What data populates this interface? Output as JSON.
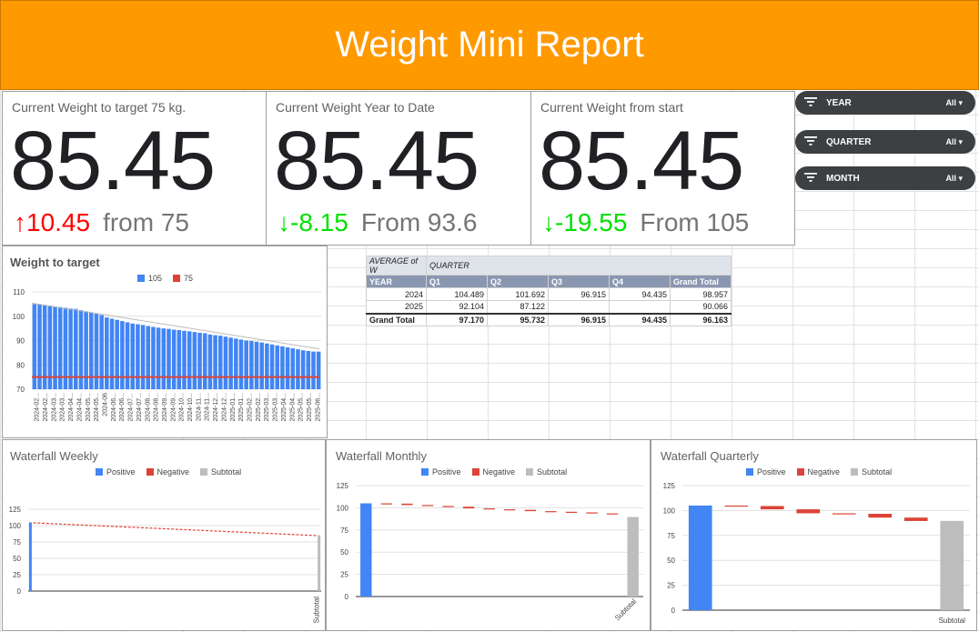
{
  "header": {
    "title": "Weight Mini Report"
  },
  "scorecards": [
    {
      "title": "Current Weight to target 75 kg.",
      "value": "85.45",
      "delta": "10.45",
      "from": "from 75",
      "direction": "up"
    },
    {
      "title": "Current Weight Year to Date",
      "value": "85.45",
      "delta": "-8.15",
      "from": "From 93.6",
      "direction": "down"
    },
    {
      "title": "Current Weight from start",
      "value": "85.45",
      "delta": "-19.55",
      "from": "From 105",
      "direction": "down"
    }
  ],
  "filters": [
    {
      "name": "YEAR",
      "value": "All"
    },
    {
      "name": "QUARTER",
      "value": "All"
    },
    {
      "name": "MONTH",
      "value": "All"
    }
  ],
  "colors": {
    "header": "#ff9900",
    "bar": "#4285f4",
    "target": "#db4437",
    "subtotal": "#bdbdbd",
    "up": "#ff0000",
    "down": "#00e000"
  },
  "weight_chart": {
    "title": "Weight to target",
    "legend": [
      "105",
      "75"
    ],
    "y_ticks": [
      "110",
      "100",
      "90",
      "80",
      "70"
    ],
    "x_labels": [
      "2024-02...",
      "2024-02...",
      "2024-03...",
      "2024-03...",
      "2024-04...",
      "2024-04...",
      "2024-05...",
      "2024-05...",
      "2024-06",
      "2024-06...",
      "2024-06...",
      "2024-07...",
      "2024-07...",
      "2024-08...",
      "2024-08...",
      "2024-09...",
      "2024-09...",
      "2024-10...",
      "2024-10...",
      "2024-11...",
      "2024-11...",
      "2024-12...",
      "2024-12...",
      "2025-01...",
      "2025-01...",
      "2025-02...",
      "2025-02...",
      "2025-03...",
      "2025-03...",
      "2025-04...",
      "2025-04...",
      "2025-05...",
      "2025-05...",
      "2025-06..."
    ]
  },
  "pivot": {
    "corner": "AVERAGE of W",
    "column_group": "QUARTER",
    "row_header": "YEAR",
    "columns": [
      "Q1",
      "Q2",
      "Q3",
      "Q4",
      "Grand Total"
    ],
    "rows": [
      {
        "label": "2024",
        "cells": [
          "104.489",
          "101.692",
          "96.915",
          "94.435",
          "98.957"
        ]
      },
      {
        "label": "2025",
        "cells": [
          "92.104",
          "87.122",
          "",
          "",
          "90.066"
        ]
      }
    ],
    "grand_total": {
      "label": "Grand Total",
      "cells": [
        "97.170",
        "95.732",
        "96.915",
        "94.435",
        "96.163"
      ]
    }
  },
  "waterfalls": [
    {
      "title": "Waterfall Weekly",
      "legend": [
        "Positive",
        "Negative",
        "Subtotal"
      ],
      "y_ticks": [
        "125",
        "100",
        "75",
        "50",
        "25",
        "0"
      ],
      "x_label": "Subtotal"
    },
    {
      "title": "Waterfall Monthly",
      "legend": [
        "Positive",
        "Negative",
        "Subtotal"
      ],
      "y_ticks": [
        "125",
        "100",
        "75",
        "50",
        "25",
        "0"
      ],
      "x_label": "Subtotal"
    },
    {
      "title": "Waterfall Quarterly",
      "legend": [
        "Positive",
        "Negative",
        "Subtotal"
      ],
      "y_ticks": [
        "125",
        "100",
        "75",
        "50",
        "25",
        "0"
      ],
      "x_label": "Subtotal"
    }
  ],
  "chart_data": [
    {
      "type": "bar",
      "title": "Weight to target",
      "series": [
        {
          "name": "105",
          "values": [
            105,
            105,
            104.5,
            104.3,
            104,
            103.8,
            103.5,
            103.2,
            103,
            102.5,
            102,
            101.5,
            101,
            100.5,
            99.5,
            99,
            98.5,
            98,
            97.5,
            97,
            96.7,
            96.4,
            96,
            95.6,
            95.3,
            95,
            94.8,
            94.5,
            94.3,
            94,
            93.8,
            93.5,
            93.2,
            93,
            92.5,
            92.2,
            92,
            91.6,
            91.2,
            90.8,
            90.4,
            90,
            89.8,
            89.5,
            89.2,
            88.8,
            88.4,
            88,
            87.6,
            87.2,
            86.8,
            86.4,
            86,
            85.7,
            85.45,
            85.45
          ]
        },
        {
          "name": "75",
          "values": [
            75
          ]
        }
      ],
      "ylim": [
        70,
        110
      ]
    },
    {
      "type": "bar",
      "title": "Waterfall Weekly",
      "values": [
        105,
        85.45
      ],
      "ylim": [
        0,
        125
      ]
    },
    {
      "type": "bar",
      "title": "Waterfall Monthly",
      "start": 105,
      "deltas": [
        -0.3,
        -1.6,
        -1.1,
        -0.8,
        -1.9,
        -1.0,
        -0.6,
        -1.5,
        -0.7,
        -0.7,
        -1.1,
        -1.2
      ],
      "subtotal": 89.6,
      "ylim": [
        0,
        125
      ]
    },
    {
      "type": "bar",
      "title": "Waterfall Quarterly",
      "start": 105,
      "deltas": [
        -0.5,
        -3.3,
        -4.0,
        -0.5,
        -3.8,
        -3.4
      ],
      "subtotal": 89.6,
      "ylim": [
        0,
        125
      ]
    }
  ]
}
